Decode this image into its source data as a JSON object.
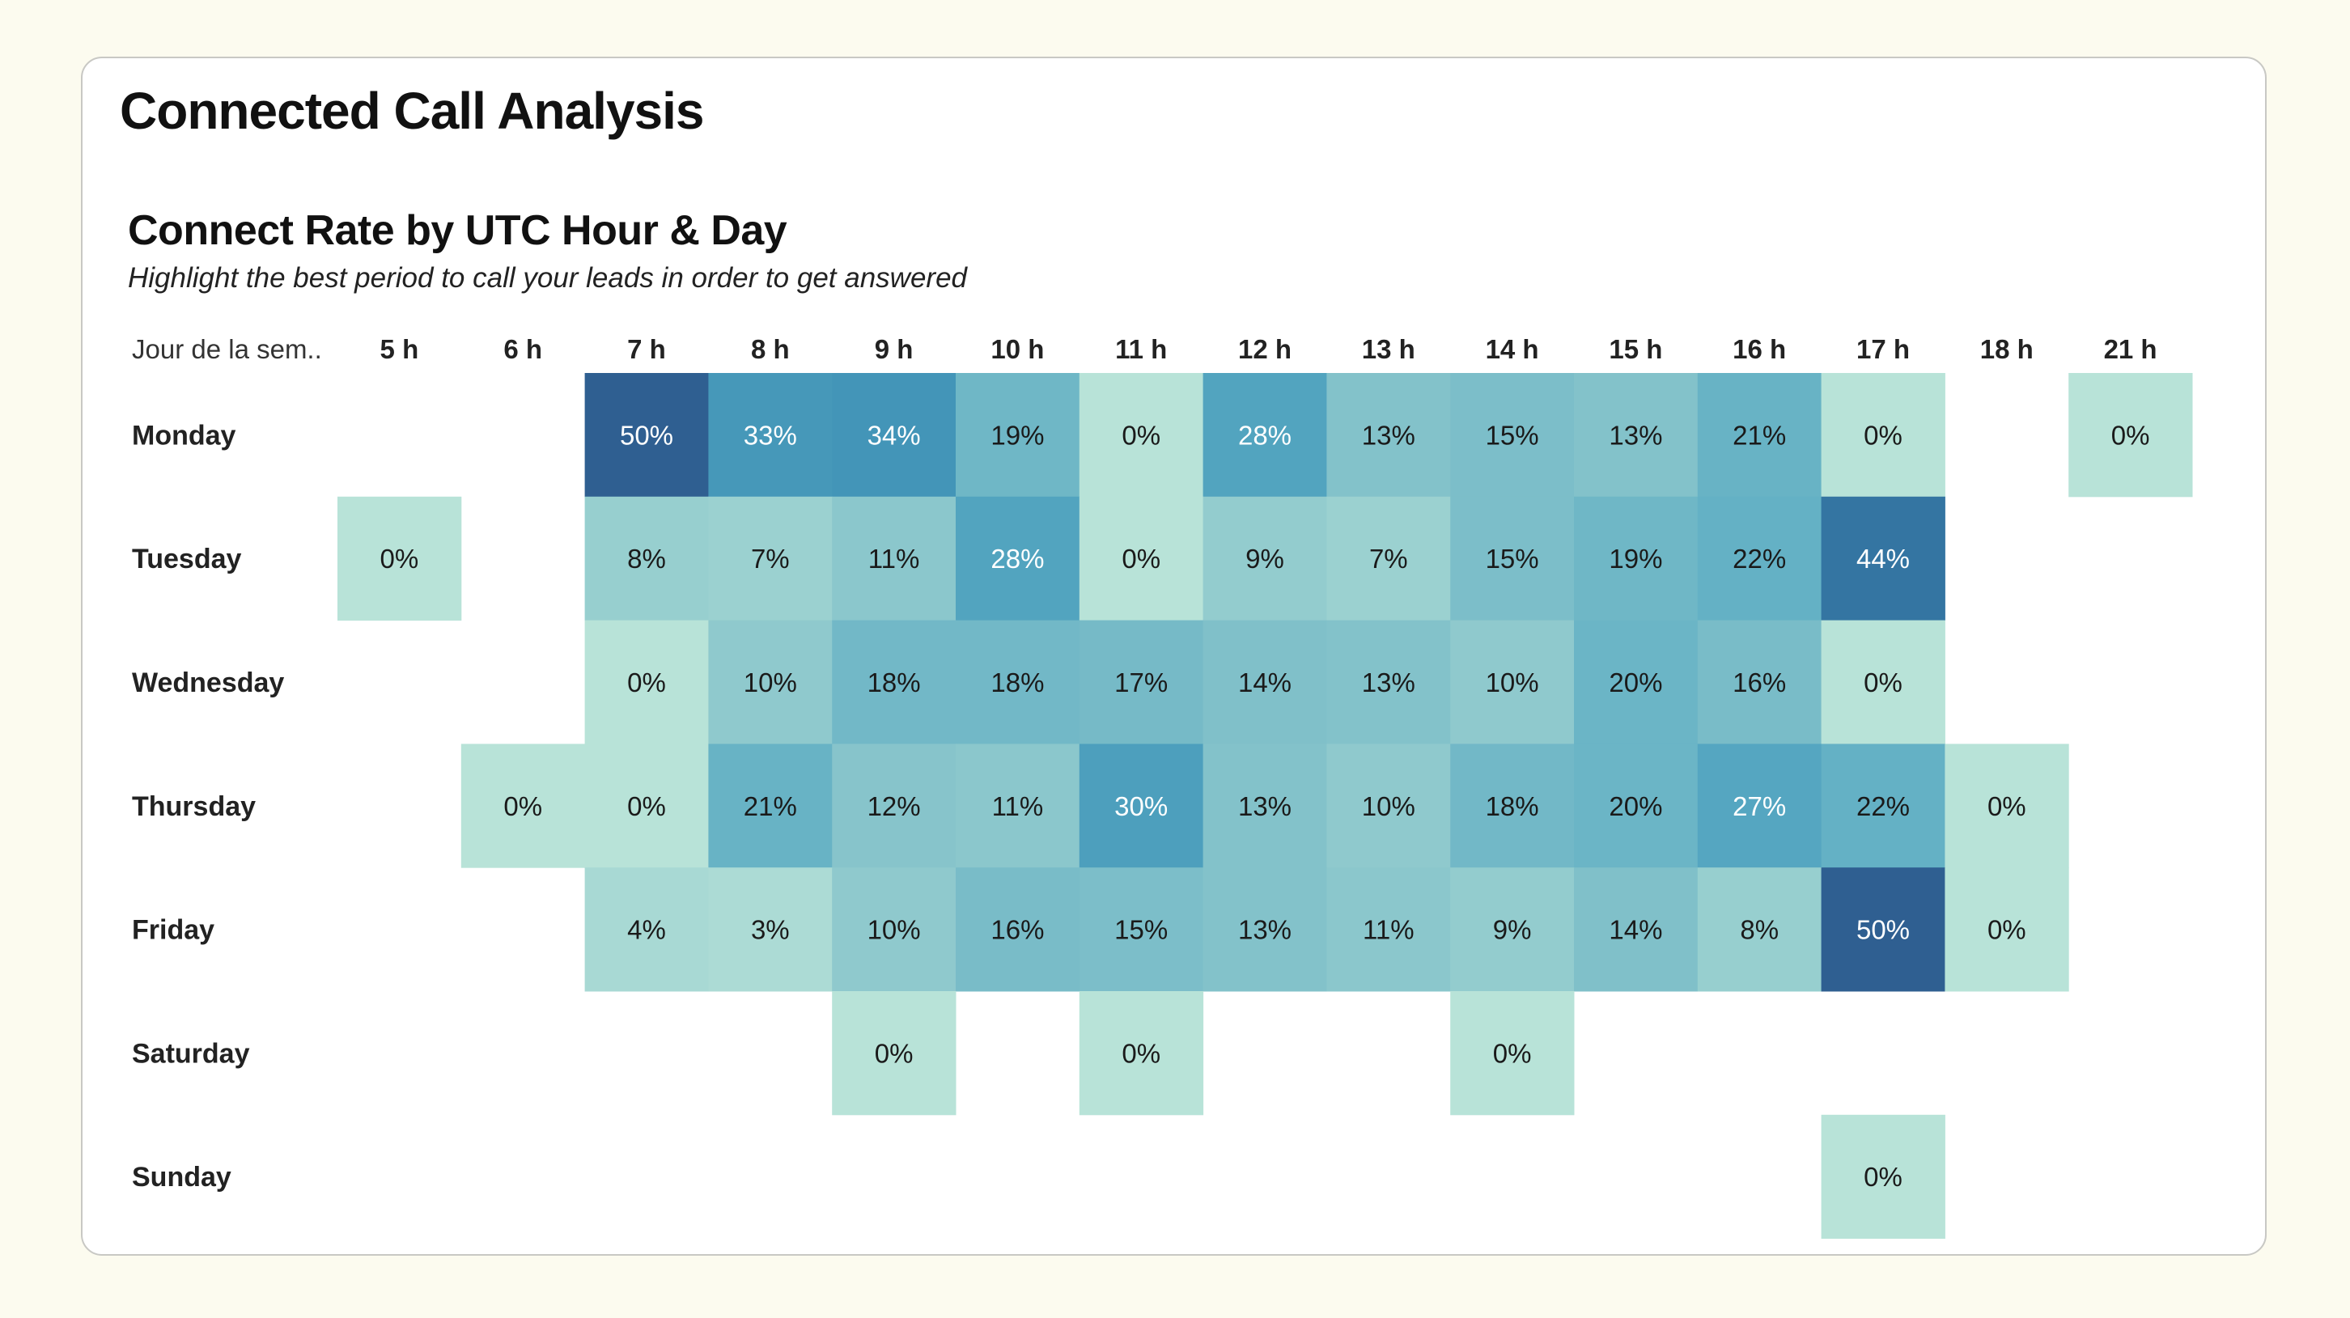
{
  "page": {
    "title": "Connected Call Analysis"
  },
  "chart_data": {
    "type": "heatmap",
    "title": "Connect Rate by UTC Hour & Day",
    "subtitle": "Highlight the best period to call your leads in order to get answered",
    "row_header": "Jour de la sem..",
    "columns": [
      "5 h",
      "6 h",
      "7 h",
      "8 h",
      "9 h",
      "10 h",
      "11 h",
      "12 h",
      "13 h",
      "14 h",
      "15 h",
      "16 h",
      "17 h",
      "18 h",
      "21 h"
    ],
    "rows": [
      "Monday",
      "Tuesday",
      "Wednesday",
      "Thursday",
      "Friday",
      "Saturday",
      "Sunday"
    ],
    "values": [
      [
        null,
        null,
        50,
        33,
        34,
        19,
        0,
        28,
        13,
        15,
        13,
        21,
        0,
        null,
        0
      ],
      [
        0,
        null,
        8,
        7,
        11,
        28,
        0,
        9,
        7,
        15,
        19,
        22,
        44,
        null,
        null
      ],
      [
        null,
        null,
        0,
        10,
        18,
        18,
        17,
        14,
        13,
        10,
        20,
        16,
        0,
        null,
        null
      ],
      [
        null,
        0,
        0,
        21,
        12,
        11,
        30,
        13,
        10,
        18,
        20,
        27,
        22,
        0,
        null
      ],
      [
        null,
        null,
        4,
        3,
        10,
        16,
        15,
        13,
        11,
        9,
        14,
        8,
        50,
        0,
        null
      ],
      [
        null,
        null,
        null,
        null,
        0,
        null,
        0,
        null,
        null,
        0,
        null,
        null,
        null,
        null,
        null
      ],
      [
        null,
        null,
        null,
        null,
        null,
        null,
        null,
        null,
        null,
        null,
        null,
        null,
        0,
        null,
        null
      ]
    ],
    "value_suffix": "%",
    "value_range": [
      0,
      50
    ],
    "color_scale": [
      "#b8e3d8",
      "#85c3ca",
      "#5aabc3",
      "#3a8db4",
      "#2f5f91"
    ]
  }
}
